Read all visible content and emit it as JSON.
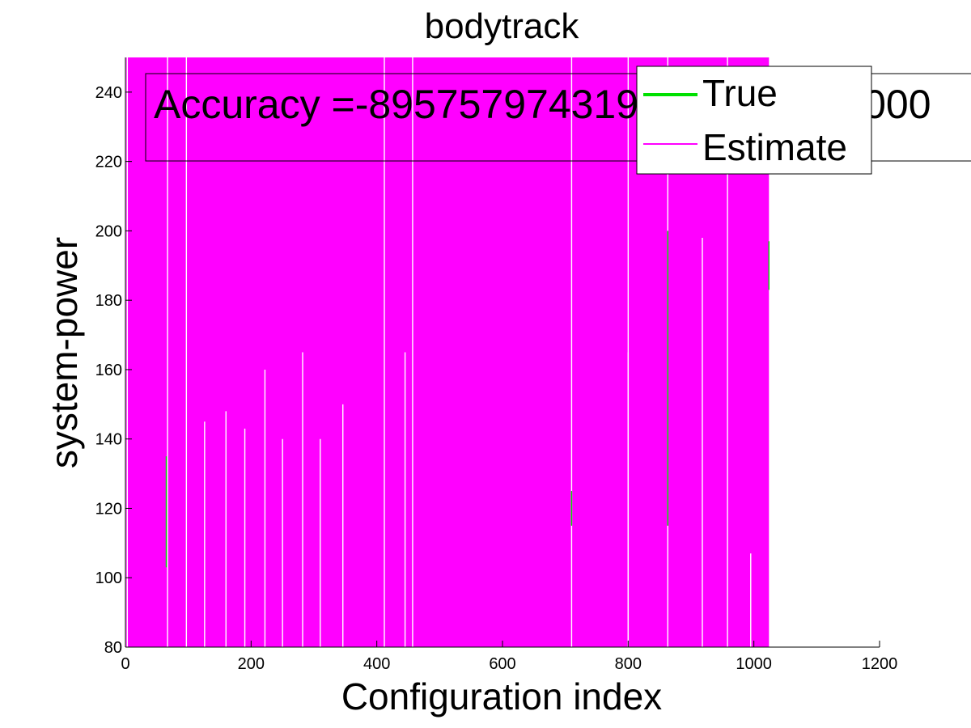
{
  "chart_data": {
    "type": "line",
    "title": "bodytrack",
    "xlabel": "Configuration index",
    "ylabel": "system-power",
    "xlim": [
      0,
      1200
    ],
    "ylim": [
      80,
      250
    ],
    "x_ticks": [
      0,
      200,
      400,
      600,
      800,
      1000,
      1200
    ],
    "y_ticks": [
      80,
      100,
      120,
      140,
      160,
      180,
      200,
      220,
      240
    ],
    "grid": false,
    "legend_position": "top-right",
    "annotation": "Accuracy =-8957579743193452800000000",
    "series": [
      {
        "name": "True",
        "color": "#00e000",
        "n_points": 1024,
        "x_range": [
          1,
          1024
        ],
        "y_range": [
          80,
          250
        ],
        "visible_segments": [
          {
            "x": 65,
            "y_low": 103,
            "y_high": 135
          },
          {
            "x": 710,
            "y_low": 115,
            "y_high": 125
          },
          {
            "x": 863,
            "y_low": 115,
            "y_high": 200
          },
          {
            "x": 1024,
            "y_low": 183,
            "y_high": 197
          }
        ]
      },
      {
        "name": "Estimate",
        "color": "#ff00ff",
        "n_points": 1024,
        "x_range": [
          1,
          1024
        ],
        "y_range": [
          80,
          250
        ],
        "gaps": [
          {
            "x": 3,
            "y_low": 80,
            "y_high": 250
          },
          {
            "x": 67,
            "y_low": 80,
            "y_high": 250
          },
          {
            "x": 97,
            "y_low": 80,
            "y_high": 250
          },
          {
            "x": 412,
            "y_low": 80,
            "y_high": 250
          },
          {
            "x": 457,
            "y_low": 80,
            "y_high": 250
          },
          {
            "x": 710,
            "y_low": 80,
            "y_high": 250
          },
          {
            "x": 800,
            "y_low": 80,
            "y_high": 250
          },
          {
            "x": 863,
            "y_low": 80,
            "y_high": 250
          },
          {
            "x": 958,
            "y_low": 80,
            "y_high": 250
          },
          {
            "x": 995,
            "y_low": 80,
            "y_high": 107
          },
          {
            "x": 126,
            "y_low": 80,
            "y_high": 145
          },
          {
            "x": 160,
            "y_low": 80,
            "y_high": 148
          },
          {
            "x": 190,
            "y_low": 80,
            "y_high": 143
          },
          {
            "x": 222,
            "y_low": 80,
            "y_high": 160
          },
          {
            "x": 250,
            "y_low": 80,
            "y_high": 140
          },
          {
            "x": 282,
            "y_low": 80,
            "y_high": 165
          },
          {
            "x": 310,
            "y_low": 80,
            "y_high": 140
          },
          {
            "x": 346,
            "y_low": 80,
            "y_high": 150
          },
          {
            "x": 445,
            "y_low": 80,
            "y_high": 165
          },
          {
            "x": 800,
            "y_low": 80,
            "y_high": 165
          },
          {
            "x": 918,
            "y_low": 80,
            "y_high": 198
          }
        ]
      }
    ]
  }
}
